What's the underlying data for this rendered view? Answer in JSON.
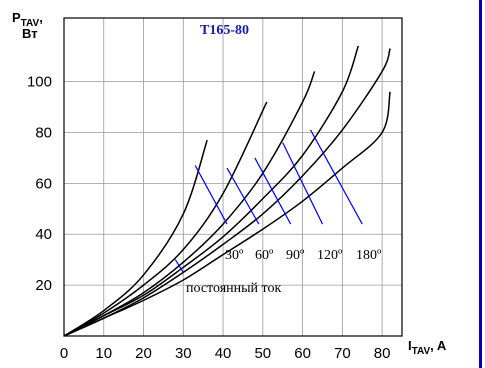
{
  "chart_data": {
    "type": "line",
    "title": "T165-80",
    "ylabel_main": "P",
    "ylabel_sub": "TAV",
    "ylabel_comma": ",",
    "ylabel_unit": "Вт",
    "xlabel_main": "I",
    "xlabel_sub": "TAV",
    "xlabel_unit": ", A",
    "xlim": [
      0,
      85
    ],
    "ylim": [
      0,
      125
    ],
    "x_ticks": [
      0,
      10,
      20,
      30,
      40,
      50,
      60,
      70,
      80
    ],
    "y_ticks": [
      20,
      40,
      60,
      80,
      100
    ],
    "grid": true,
    "series": [
      {
        "name": "30º",
        "points": [
          [
            0,
            0
          ],
          [
            10,
            10
          ],
          [
            20,
            24
          ],
          [
            30,
            48
          ],
          [
            36,
            77
          ]
        ]
      },
      {
        "name": "60º",
        "points": [
          [
            0,
            0
          ],
          [
            10,
            9
          ],
          [
            20,
            20
          ],
          [
            30,
            34
          ],
          [
            40,
            56
          ],
          [
            51,
            92
          ]
        ]
      },
      {
        "name": "90º",
        "points": [
          [
            0,
            0
          ],
          [
            10,
            8
          ],
          [
            20,
            17
          ],
          [
            30,
            29
          ],
          [
            40,
            44
          ],
          [
            50,
            64
          ],
          [
            60,
            92
          ],
          [
            63,
            104
          ]
        ]
      },
      {
        "name": "120º",
        "points": [
          [
            0,
            0
          ],
          [
            10,
            8
          ],
          [
            20,
            16
          ],
          [
            30,
            27
          ],
          [
            40,
            39
          ],
          [
            50,
            54
          ],
          [
            60,
            71
          ],
          [
            70,
            96
          ],
          [
            74,
            114
          ]
        ]
      },
      {
        "name": "180º",
        "points": [
          [
            0,
            0
          ],
          [
            10,
            7
          ],
          [
            20,
            15
          ],
          [
            30,
            25
          ],
          [
            40,
            36
          ],
          [
            50,
            48
          ],
          [
            60,
            63
          ],
          [
            70,
            81
          ],
          [
            80,
            104
          ],
          [
            82,
            113
          ]
        ]
      },
      {
        "name": "постоянный ток",
        "points": [
          [
            0,
            0
          ],
          [
            10,
            7
          ],
          [
            20,
            14
          ],
          [
            30,
            22
          ],
          [
            40,
            32
          ],
          [
            50,
            42
          ],
          [
            60,
            53
          ],
          [
            70,
            66
          ],
          [
            80,
            80
          ],
          [
            82,
            96
          ]
        ]
      }
    ],
    "annotations": {
      "angle_labels": [
        "30º",
        "60º",
        "90º",
        "120º",
        "180º"
      ],
      "dc_label": "постоянный ток"
    },
    "colors": {
      "curves": "#000000",
      "grid": "#999999",
      "leaders": "#0000ff",
      "title": "#1a1aa6",
      "right_rule": "#0000cc"
    }
  }
}
